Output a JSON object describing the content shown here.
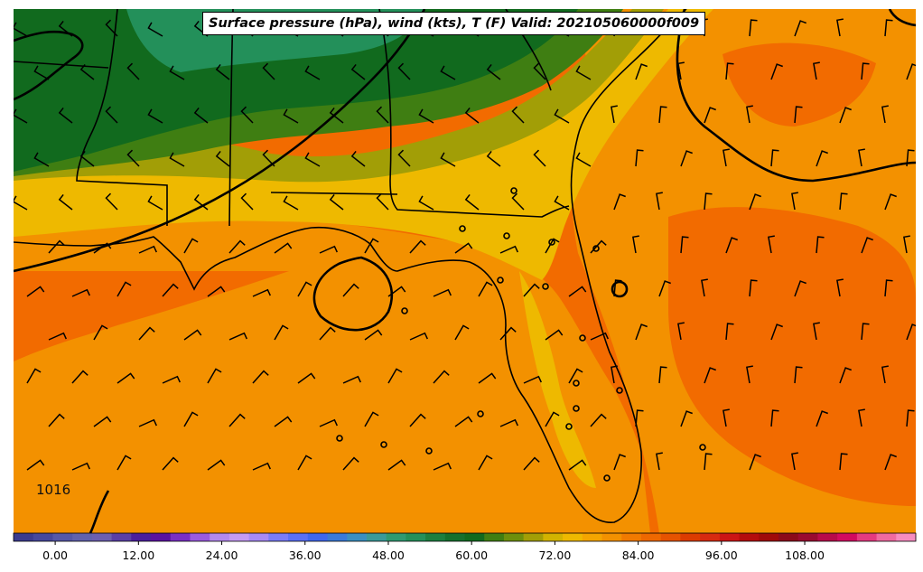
{
  "title": "Surface pressure (hPa), wind (kts), T (F) Valid: 202105060000f009",
  "isobar_labels": [
    "1016"
  ],
  "colorbar": {
    "ticks": [
      "0.00",
      "12.00",
      "24.00",
      "36.00",
      "48.00",
      "60.00",
      "72.00",
      "84.00",
      "96.00",
      "108.00"
    ],
    "range": [
      -6,
      124
    ],
    "step": 3,
    "colors": [
      "#3b3b8f",
      "#46489c",
      "#5558a8",
      "#6162ad",
      "#6c5fb0",
      "#5a3fa6",
      "#4a1e9c",
      "#5a12a0",
      "#7a2fc4",
      "#9b5be0",
      "#b389ee",
      "#c59bf3",
      "#a88af5",
      "#7a7cf7",
      "#5a70f5",
      "#3f67ef",
      "#3a7ad8",
      "#3a8fc2",
      "#3a9a9a",
      "#2f9a72",
      "#23905a",
      "#1c7f3f",
      "#15702d",
      "#116a1e",
      "#3f7e12",
      "#6d8f0c",
      "#a29e06",
      "#d2b300",
      "#eeb900",
      "#f4a500",
      "#f39100",
      "#f17a00",
      "#ee6800",
      "#e65300",
      "#dc3c00",
      "#d72a10",
      "#cc1515",
      "#b40d0d",
      "#a00a0a",
      "#8c0a1a",
      "#9a0a30",
      "#b80a4a",
      "#d20a60",
      "#e53a80",
      "#f06aa0",
      "#f78cc0"
    ]
  },
  "map_fill_colors": {
    "ocean_warm": "#f26b00",
    "ocean_hot": "#f24f00",
    "warm": "#f39100",
    "mild": "#eeb900",
    "olive": "#a29e06",
    "green": "#3f7e12",
    "dark_green": "#116a1e",
    "teal_green": "#23905a"
  }
}
